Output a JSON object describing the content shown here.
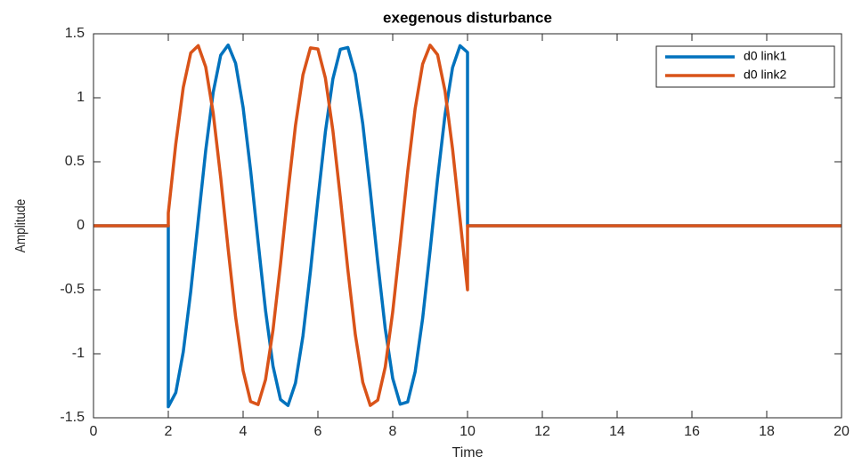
{
  "chart_data": {
    "type": "line",
    "title": "exegenous disturbance",
    "xlabel": "Time",
    "ylabel": "Amplitude",
    "x": [
      0,
      2,
      2,
      2.2,
      2.4,
      2.6,
      2.8,
      3,
      3.2,
      3.4,
      3.6,
      3.8,
      4,
      4.2,
      4.4,
      4.6,
      4.8,
      5,
      5.2,
      5.4,
      5.6,
      5.8,
      6,
      6.2,
      6.4,
      6.6,
      6.8,
      7,
      7.2,
      7.4,
      7.6,
      7.8,
      8,
      8.2,
      8.4,
      8.6,
      8.8,
      9,
      9.2,
      9.4,
      9.6,
      9.8,
      10,
      10,
      20
    ],
    "series": [
      {
        "name": "d0 link1",
        "color": "#0072BD",
        "values": [
          0,
          0,
          -1.414,
          -1.303,
          -0.985,
          -0.512,
          0.041,
          0.588,
          1.042,
          1.332,
          1.412,
          1.269,
          0.924,
          0.434,
          -0.123,
          -0.663,
          -1.097,
          -1.358,
          -1.404,
          -1.229,
          -0.861,
          -0.355,
          0.206,
          0.734,
          1.147,
          1.379,
          1.393,
          1.186,
          0.795,
          0.273,
          -0.286,
          -0.803,
          -1.193,
          -1.394,
          -1.376,
          -1.14,
          -0.724,
          -0.192,
          0.368,
          0.87,
          1.236,
          1.407,
          1.355,
          0,
          0
        ]
      },
      {
        "name": "d0 link2",
        "color": "#D95319",
        "values": [
          0,
          0,
          0.099,
          0.64,
          1.081,
          1.351,
          1.407,
          1.241,
          0.881,
          0.378,
          -0.181,
          -0.713,
          -1.132,
          -1.373,
          -1.397,
          -1.201,
          -0.813,
          -0.298,
          0.263,
          0.783,
          1.179,
          1.39,
          1.381,
          1.154,
          0.744,
          0.218,
          -0.342,
          -0.85,
          -1.223,
          -1.403,
          -1.362,
          -1.104,
          -0.673,
          -0.136,
          0.423,
          0.915,
          1.263,
          1.411,
          1.336,
          1.051,
          0.6,
          0.053,
          -0.5,
          0,
          0
        ]
      }
    ],
    "xlim": [
      0,
      20
    ],
    "xticks": [
      0,
      2,
      4,
      6,
      8,
      10,
      12,
      14,
      16,
      18,
      20
    ],
    "ylim": [
      -1.5,
      1.5
    ],
    "yticks": [
      -1.5,
      -1,
      -0.5,
      0,
      0.5,
      1,
      1.5
    ],
    "grid": false,
    "legend": "upper right"
  }
}
